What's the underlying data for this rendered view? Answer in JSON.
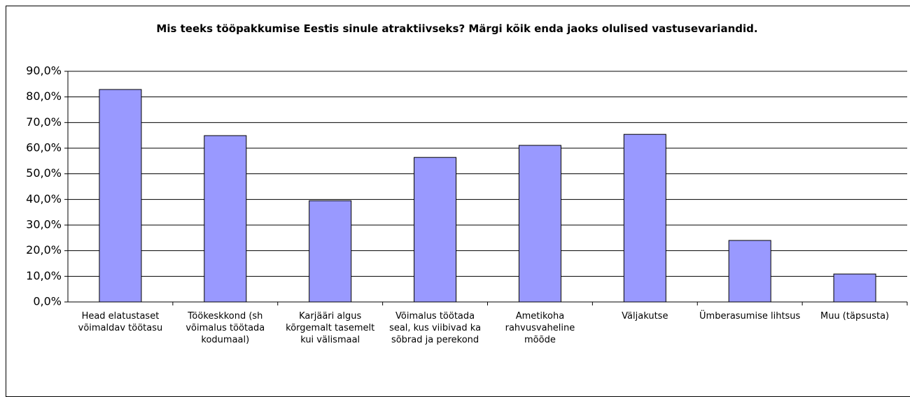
{
  "chart_data": {
    "type": "bar",
    "title": "Mis teeks tööpakkumise Eestis sinule atraktiivseks? Märgi kõik enda jaoks olulised vastusevariandid.",
    "categories": [
      "Head elatustaset võimaldav töötasu",
      "Töökeskkond (sh võimalus töötada kodumaal)",
      "Karjääri algus kõrgemalt tasemelt kui välismaal",
      "Võimalus töötada seal, kus viibivad ka sõbrad ja perekond",
      "Ametikoha rahvusvaheline mõõde",
      "Väljakutse",
      "Ümberasumise lihtsus",
      "Muu (täpsusta)"
    ],
    "values": [
      82.9,
      64.9,
      39.5,
      56.4,
      61.1,
      65.4,
      24.0,
      10.9
    ],
    "color": "#9999ff",
    "ylim": [
      0,
      90
    ],
    "yticks": [
      {
        "value": 0,
        "label": "0,0%"
      },
      {
        "value": 10,
        "label": "10,0%"
      },
      {
        "value": 20,
        "label": "20,0%"
      },
      {
        "value": 30,
        "label": "30,0%"
      },
      {
        "value": 40,
        "label": "40,0%"
      },
      {
        "value": 50,
        "label": "50,0%"
      },
      {
        "value": 60,
        "label": "60,0%"
      },
      {
        "value": 70,
        "label": "70,0%"
      },
      {
        "value": 80,
        "label": "80,0%"
      },
      {
        "value": 90,
        "label": "90,0%"
      }
    ],
    "grid": true
  }
}
